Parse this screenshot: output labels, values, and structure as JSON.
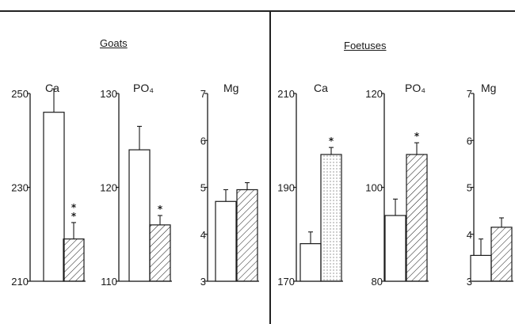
{
  "chart_data": [
    {
      "group": "Goats",
      "panels": [
        {
          "type": "bar",
          "title": "Ca",
          "ylim": [
            210,
            250
          ],
          "ticks": [
            210,
            230,
            250
          ],
          "bars": [
            {
              "value": 246,
              "error": 5,
              "pattern": "open",
              "marker": ""
            },
            {
              "value": 219,
              "error": 3.5,
              "pattern": "hatched",
              "marker": "* *"
            }
          ]
        },
        {
          "type": "bar",
          "title": "PO₄",
          "ylim": [
            110,
            130
          ],
          "ticks": [
            110,
            120,
            130
          ],
          "bars": [
            {
              "value": 124,
              "error": 2.5,
              "pattern": "open",
              "marker": ""
            },
            {
              "value": 116,
              "error": 1,
              "pattern": "hatched",
              "marker": "*"
            }
          ]
        },
        {
          "type": "bar",
          "title": "Mg",
          "ylim": [
            3,
            7
          ],
          "ticks": [
            3,
            4,
            5,
            6,
            7
          ],
          "bars": [
            {
              "value": 4.7,
              "error": 0.25,
              "pattern": "open",
              "marker": ""
            },
            {
              "value": 4.95,
              "error": 0.15,
              "pattern": "hatched",
              "marker": ""
            }
          ]
        }
      ]
    },
    {
      "group": "Foetuses",
      "panels": [
        {
          "type": "bar",
          "title": "Ca",
          "ylim": [
            170,
            210
          ],
          "ticks": [
            170,
            190,
            210
          ],
          "bars": [
            {
              "value": 178,
              "error": 2.5,
              "pattern": "open",
              "marker": ""
            },
            {
              "value": 197,
              "error": 1.5,
              "pattern": "dotted",
              "marker": "*"
            }
          ]
        },
        {
          "type": "bar",
          "title": "PO₄",
          "ylim": [
            80,
            120
          ],
          "ticks": [
            80,
            100,
            120
          ],
          "bars": [
            {
              "value": 94,
              "error": 3.5,
              "pattern": "open",
              "marker": ""
            },
            {
              "value": 107,
              "error": 2.5,
              "pattern": "hatched",
              "marker": "*"
            }
          ]
        },
        {
          "type": "bar",
          "title": "Mg",
          "ylim": [
            3,
            7
          ],
          "ticks": [
            3,
            4,
            5,
            6,
            7
          ],
          "bars": [
            {
              "value": 3.55,
              "error": 0.35,
              "pattern": "open",
              "marker": ""
            },
            {
              "value": 4.15,
              "error": 0.2,
              "pattern": "hatched",
              "marker": ""
            }
          ]
        }
      ]
    }
  ],
  "colors": {
    "ink": "#1a1a1a"
  }
}
